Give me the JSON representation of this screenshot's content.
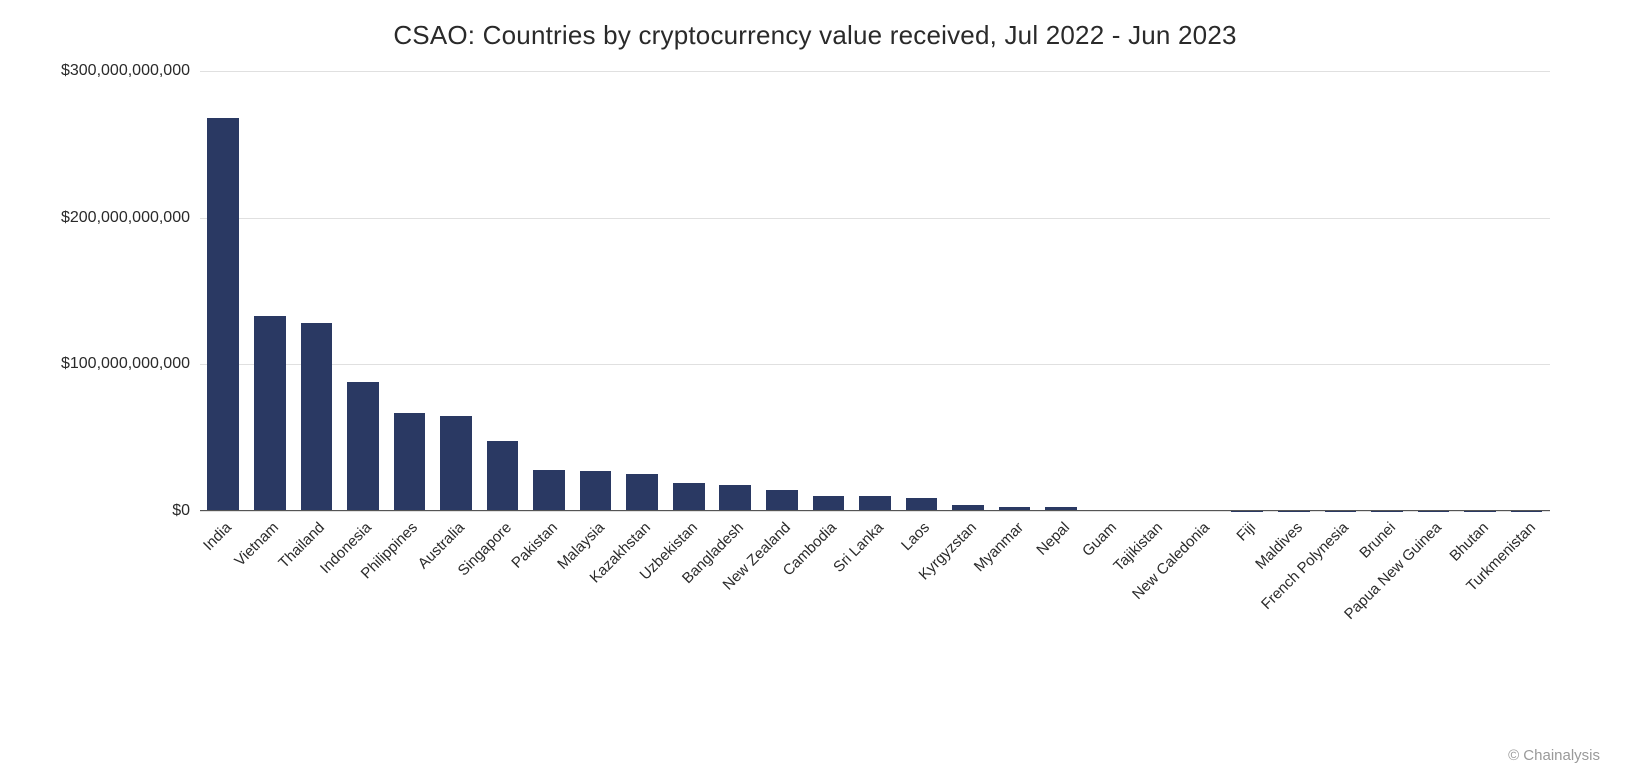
{
  "chart": {
    "type": "bar",
    "title": "CSAO: Countries by cryptocurrency value received, Jul 2022 - Jun 2023",
    "title_fontsize": 26,
    "title_color": "#2a2a2a",
    "background_color": "#ffffff",
    "bar_color": "#2a3963",
    "grid_color": "#e0e0e0",
    "axis_color": "#555555",
    "label_color": "#2a2a2a",
    "x_label_fontsize": 15,
    "y_label_fontsize": 16,
    "x_label_rotation_deg": -45,
    "bar_width_ratio": 0.68,
    "ylim": [
      0,
      300000000000
    ],
    "y_ticks": [
      {
        "value": 0,
        "label": "$0"
      },
      {
        "value": 100000000000,
        "label": "$100,000,000,000"
      },
      {
        "value": 200000000000,
        "label": "$200,000,000,000"
      },
      {
        "value": 300000000000,
        "label": "$300,000,000,000"
      }
    ],
    "categories": [
      "India",
      "Vietnam",
      "Thailand",
      "Indonesia",
      "Philippines",
      "Australia",
      "Singapore",
      "Pakistan",
      "Malaysia",
      "Kazakhstan",
      "Uzbekistan",
      "Bangladesh",
      "New Zealand",
      "Cambodia",
      "Sri Lanka",
      "Laos",
      "Kyrgyzstan",
      "Myanmar",
      "Nepal",
      "Guam",
      "Tajikistan",
      "New Caledonia",
      "Fiji",
      "Maldives",
      "French Polynesia",
      "Brunei",
      "Papua New Guinea",
      "Bhutan",
      "Turkmenistan"
    ],
    "values": [
      268000000000,
      133000000000,
      128000000000,
      88000000000,
      67000000000,
      65000000000,
      48000000000,
      28000000000,
      27000000000,
      25000000000,
      19000000000,
      18000000000,
      14000000000,
      10000000000,
      10000000000,
      9000000000,
      4000000000,
      3000000000,
      3000000000,
      500000000,
      500000000,
      400000000,
      300000000,
      300000000,
      200000000,
      200000000,
      200000000,
      100000000,
      100000000
    ]
  },
  "attribution": "© Chainalysis",
  "attribution_color": "#9a9a9a"
}
